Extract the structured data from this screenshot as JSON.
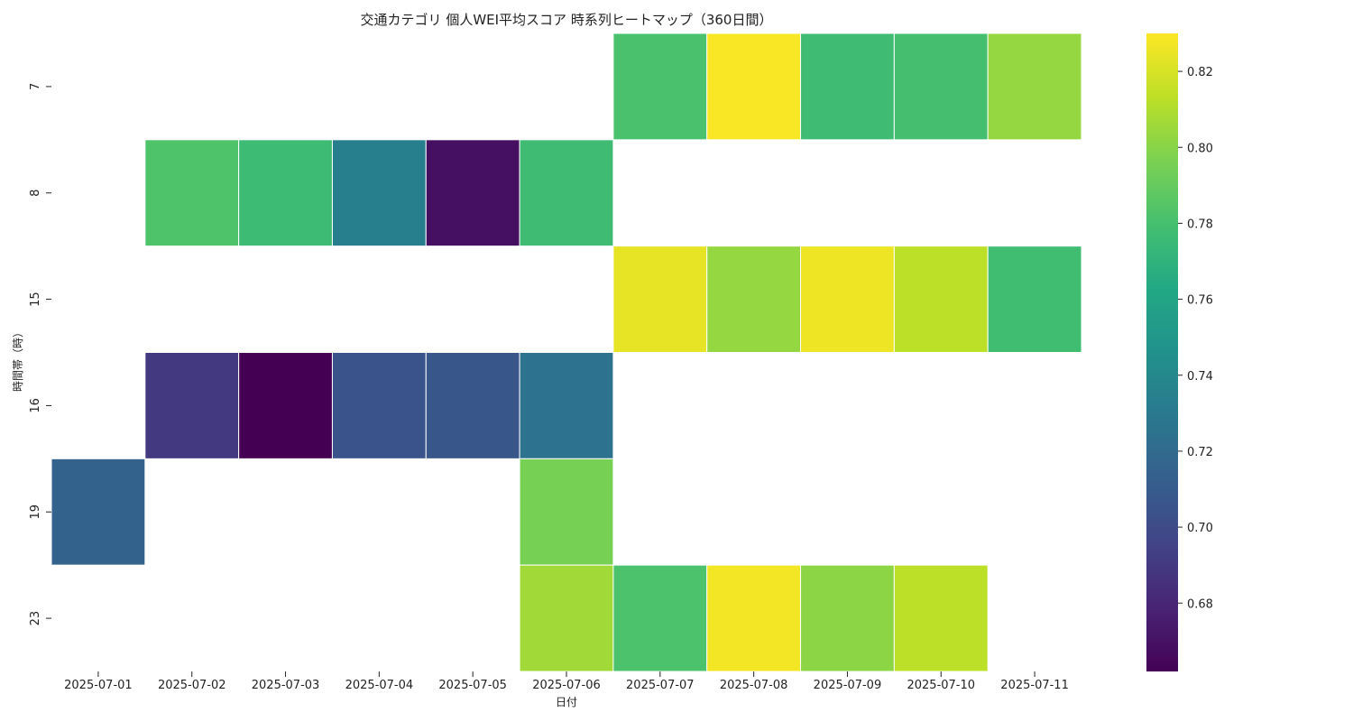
{
  "chart_data": {
    "type": "heatmap",
    "title": "交通カテゴリ 個人WEI平均スコア 時系列ヒートマップ（360日間）",
    "xlabel": "日付",
    "ylabel": "時間帯（時）",
    "x_categories": [
      "2025-07-01",
      "2025-07-02",
      "2025-07-03",
      "2025-07-04",
      "2025-07-05",
      "2025-07-06",
      "2025-07-07",
      "2025-07-08",
      "2025-07-09",
      "2025-07-10",
      "2025-07-11"
    ],
    "y_categories": [
      "7",
      "8",
      "15",
      "16",
      "19",
      "23"
    ],
    "values": [
      [
        null,
        null,
        null,
        null,
        null,
        null,
        0.781,
        0.829,
        0.777,
        0.78,
        0.803
      ],
      [
        null,
        0.783,
        0.776,
        0.734,
        0.669,
        0.777,
        null,
        null,
        null,
        null,
        null
      ],
      [
        null,
        null,
        null,
        null,
        null,
        null,
        0.824,
        0.803,
        0.826,
        0.813,
        0.778
      ],
      [
        null,
        0.69,
        0.662,
        0.705,
        0.707,
        0.725,
        null,
        null,
        null,
        null,
        null
      ],
      [
        0.715,
        null,
        null,
        null,
        null,
        0.795,
        null,
        null,
        null,
        null,
        null
      ],
      [
        null,
        null,
        null,
        null,
        null,
        0.806,
        0.782,
        0.827,
        0.801,
        0.813,
        null
      ]
    ],
    "colorscale": "viridis",
    "vmin": 0.662,
    "vmax": 0.83,
    "colorbar_ticks": [
      "0.68",
      "0.70",
      "0.72",
      "0.74",
      "0.76",
      "0.78",
      "0.80",
      "0.82"
    ],
    "grid": false
  }
}
